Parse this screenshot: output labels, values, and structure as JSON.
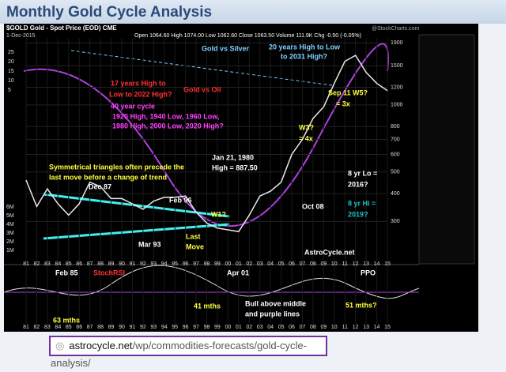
{
  "header": {
    "title": "Monthly Gold Cycle Analysis"
  },
  "chart_data": {
    "type": "line",
    "title": "$GOLD Gold - Spot Price (EOD) CME",
    "date": "1-Dec-2015",
    "quote": "Open 1064.60 High 1074.00 Low 1062.60 Close 1063.50 Volume 111.9K Chg -0.50 (-0.05%)",
    "source": "@StockCharts.com",
    "categories": [
      "81",
      "82",
      "83",
      "84",
      "85",
      "86",
      "87",
      "88",
      "89",
      "90",
      "91",
      "92",
      "93",
      "94",
      "95",
      "96",
      "97",
      "98",
      "99",
      "00",
      "01",
      "02",
      "03",
      "04",
      "05",
      "06",
      "07",
      "08",
      "09",
      "10",
      "11",
      "12",
      "13",
      "14",
      "15"
    ],
    "series": [
      {
        "name": "Gold",
        "color": "#e8e8e8",
        "values": [
          460,
          350,
          420,
          360,
          320,
          360,
          450,
          430,
          380,
          380,
          360,
          340,
          370,
          385,
          385,
          390,
          330,
          295,
          280,
          275,
          270,
          320,
          390,
          410,
          450,
          600,
          700,
          870,
          980,
          1250,
          1570,
          1670,
          1400,
          1250,
          1160
        ]
      }
    ],
    "log_scale": true,
    "ylim": [
      200,
      2000
    ],
    "yticks": [
      300,
      400,
      500,
      600,
      700,
      800,
      1000,
      1200,
      1500,
      1900
    ],
    "volume_ticks": [
      "6M",
      "5M",
      "4M",
      "3M",
      "2M",
      "1M"
    ],
    "ratio_ticks": [
      "25",
      "20",
      "15",
      "10",
      "5"
    ],
    "annotations": [
      {
        "text": "Gold vs Silver",
        "color": "#7fd0ff"
      },
      {
        "text": "20 years High to Low",
        "color": "#7fd0ff"
      },
      {
        "text": "to 2031 High?",
        "color": "#7fd0ff"
      },
      {
        "text": "17 years High to",
        "color": "#ff3030"
      },
      {
        "text": "Low to 2022 High?",
        "color": "#ff3030"
      },
      {
        "text": "Gold vs Oil",
        "color": "#ff3030"
      },
      {
        "text": "40 year cycle",
        "color": "#ff40ff"
      },
      {
        "text": "1920 High, 1940 Low, 1960 Low,",
        "color": "#ff40ff"
      },
      {
        "text": "1980 High, 2000 Low, 2020 High?",
        "color": "#ff40ff"
      },
      {
        "text": "Sep 11  W5?",
        "color": "#ffff40"
      },
      {
        "text": "= 3x",
        "color": "#ffff40"
      },
      {
        "text": "W3?",
        "color": "#ffff40"
      },
      {
        "text": "= 4x",
        "color": "#ffff40"
      },
      {
        "text": "Jan 21, 1980",
        "color": "#ffffff"
      },
      {
        "text": "High = 887.50",
        "color": "#ffffff"
      },
      {
        "text": "Symmetrical triangles often precede the",
        "color": "#ffff40"
      },
      {
        "text": "last move before a change of trend",
        "color": "#ffff40"
      },
      {
        "text": "Dec 87",
        "color": "#ffffff"
      },
      {
        "text": "Feb 96",
        "color": "#ffffff"
      },
      {
        "text": "W1?",
        "color": "#ffff40"
      },
      {
        "text": "Last",
        "color": "#ffff40"
      },
      {
        "text": "Move",
        "color": "#ffff40"
      },
      {
        "text": "Mar 93",
        "color": "#ffffff"
      },
      {
        "text": "Oct 08",
        "color": "#ffffff"
      },
      {
        "text": "8 yr Lo =",
        "color": "#ffffff"
      },
      {
        "text": "2016?",
        "color": "#ffffff"
      },
      {
        "text": "8 yr Hi =",
        "color": "#20c0c0"
      },
      {
        "text": "2019?",
        "color": "#20c0c0"
      },
      {
        "text": "AstroCycle.net",
        "color": "#ffffff"
      },
      {
        "text": "Feb 85",
        "color": "#ffffff"
      },
      {
        "text": "StochRSI",
        "color": "#ff3030"
      },
      {
        "text": "Apr 01",
        "color": "#ffffff"
      },
      {
        "text": "PPO",
        "color": "#ffffff"
      },
      {
        "text": "63 mths",
        "color": "#ffff40"
      },
      {
        "text": "41 mths",
        "color": "#ffff40"
      },
      {
        "text": "Bull above middle",
        "color": "#ffffff"
      },
      {
        "text": "and purple lines",
        "color": "#ffffff"
      },
      {
        "text": "51 mths?",
        "color": "#ffff40"
      }
    ]
  },
  "url": {
    "domain": "astrocycle.net",
    "path": "/wp/commodities-forecasts/gold-cycle-analysis/"
  }
}
